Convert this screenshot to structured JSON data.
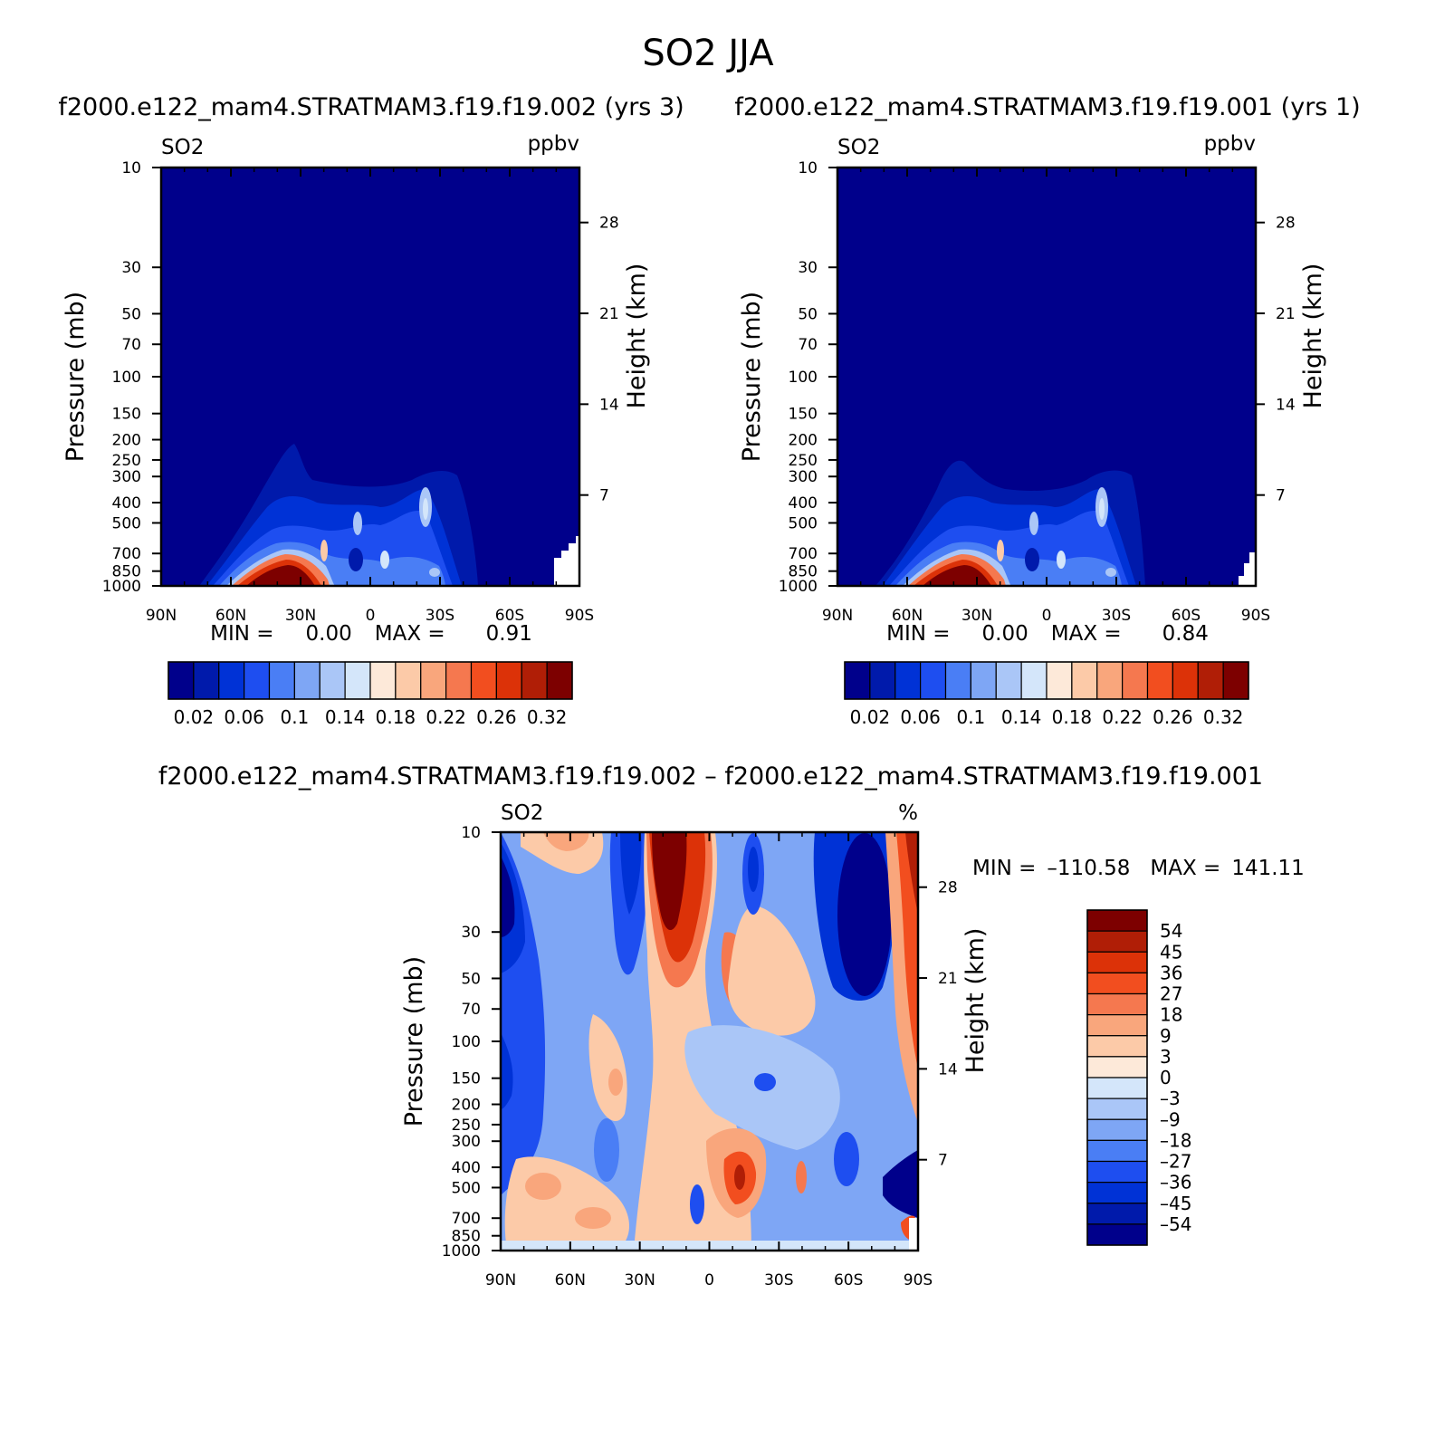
{
  "figure": {
    "title": "SO2 JJA"
  },
  "panels": [
    {
      "id": "case",
      "subtitle": "f2000.e122_mam4.STRATMAM3.f19.f19.002 (yrs 3)",
      "left_label": "SO2",
      "right_label": "ppbv",
      "stats": {
        "min_label": "MIN =",
        "min_value": "0.00",
        "max_label": "MAX =",
        "max_value": "0.91"
      }
    },
    {
      "id": "control",
      "subtitle": "f2000.e122_mam4.STRATMAM3.f19.f19.001 (yrs 1)",
      "left_label": "SO2",
      "right_label": "ppbv",
      "stats": {
        "min_label": "MIN =",
        "min_value": "0.00",
        "max_label": "MAX =",
        "max_value": "0.84"
      }
    },
    {
      "id": "difference",
      "subtitle": "f2000.e122_mam4.STRATMAM3.f19.f19.002 – f2000.e122_mam4.STRATMAM3.f19.f19.001",
      "left_label": "SO2",
      "right_label": "%",
      "stats": {
        "min_label": "MIN =",
        "min_value": "–110.58",
        "max_label": "MAX =",
        "max_value": "141.11"
      }
    }
  ],
  "chart_data": [
    {
      "type": "heatmap",
      "title": "f2000.e122_mam4.STRATMAM3.f19.f19.002 (yrs 3)",
      "variable": "SO2",
      "units": "ppbv",
      "xlabel": "",
      "ylabel": "Pressure (mb)",
      "y2label": "Height (km)",
      "x_ticks": [
        "90N",
        "60N",
        "30N",
        "0",
        "30S",
        "60S",
        "90S"
      ],
      "x_values": [
        90,
        60,
        30,
        0,
        -30,
        -60,
        -90
      ],
      "y_ticks": [
        10,
        30,
        50,
        70,
        100,
        150,
        200,
        250,
        300,
        400,
        500,
        700,
        850,
        1000
      ],
      "y2_ticks": [
        28,
        21,
        14,
        7
      ],
      "ylim": [
        1000,
        10
      ],
      "colorbar_levels": [
        0.02,
        0.04,
        0.06,
        0.08,
        0.1,
        0.12,
        0.14,
        0.16,
        0.18,
        0.2,
        0.22,
        0.24,
        0.26,
        0.28,
        0.32
      ],
      "colorbar_labels": [
        "0.02",
        "0.06",
        "0.1",
        "0.14",
        "0.18",
        "0.22",
        "0.26",
        "0.32"
      ],
      "min": 0.0,
      "max": 0.91
    },
    {
      "type": "heatmap",
      "title": "f2000.e122_mam4.STRATMAM3.f19.f19.001 (yrs 1)",
      "variable": "SO2",
      "units": "ppbv",
      "xlabel": "",
      "ylabel": "Pressure (mb)",
      "y2label": "Height (km)",
      "x_ticks": [
        "90N",
        "60N",
        "30N",
        "0",
        "30S",
        "60S",
        "90S"
      ],
      "x_values": [
        90,
        60,
        30,
        0,
        -30,
        -60,
        -90
      ],
      "y_ticks": [
        10,
        30,
        50,
        70,
        100,
        150,
        200,
        250,
        300,
        400,
        500,
        700,
        850,
        1000
      ],
      "y2_ticks": [
        28,
        21,
        14,
        7
      ],
      "ylim": [
        1000,
        10
      ],
      "colorbar_levels": [
        0.02,
        0.04,
        0.06,
        0.08,
        0.1,
        0.12,
        0.14,
        0.16,
        0.18,
        0.2,
        0.22,
        0.24,
        0.26,
        0.28,
        0.32
      ],
      "colorbar_labels": [
        "0.02",
        "0.06",
        "0.1",
        "0.14",
        "0.18",
        "0.22",
        "0.26",
        "0.32"
      ],
      "min": 0.0,
      "max": 0.84
    },
    {
      "type": "heatmap",
      "title": "f2000.e122_mam4.STRATMAM3.f19.f19.002 – f2000.e122_mam4.STRATMAM3.f19.f19.001",
      "variable": "SO2",
      "units": "%",
      "xlabel": "",
      "ylabel": "Pressure (mb)",
      "y2label": "Height (km)",
      "x_ticks": [
        "90N",
        "60N",
        "30N",
        "0",
        "30S",
        "60S",
        "90S"
      ],
      "x_values": [
        90,
        60,
        30,
        0,
        -30,
        -60,
        -90
      ],
      "y_ticks": [
        10,
        30,
        50,
        70,
        100,
        150,
        200,
        250,
        300,
        400,
        500,
        700,
        850,
        1000
      ],
      "y2_ticks": [
        28,
        21,
        14,
        7
      ],
      "ylim": [
        1000,
        10
      ],
      "colorbar_levels": [
        54,
        45,
        36,
        27,
        18,
        9,
        3,
        0,
        -3,
        -9,
        -18,
        -27,
        -36,
        -45,
        -54
      ],
      "colorbar_labels": [
        "54",
        "45",
        "36",
        "27",
        "18",
        "9",
        "3",
        "0",
        "–3",
        "–9",
        "–18",
        "–27",
        "–36",
        "–45",
        "–54"
      ],
      "min": -110.58,
      "max": 141.11
    }
  ],
  "palettes": {
    "seq": [
      "#00008b",
      "#001aab",
      "#0032d6",
      "#1e4ef0",
      "#4a7ef5",
      "#7ea6f5",
      "#aac6f7",
      "#d4e6fa",
      "#fde9d9",
      "#fccaa8",
      "#f9a67c",
      "#f5784f",
      "#f24e1f",
      "#dc3208",
      "#b01e06",
      "#7d0000"
    ],
    "div_top_to_bottom": [
      "#7d0000",
      "#b01e06",
      "#dc3208",
      "#f24e1f",
      "#f5784f",
      "#f9a67c",
      "#fccaa8",
      "#fde9d9",
      "#d4e6fa",
      "#aac6f7",
      "#7ea6f5",
      "#4a7ef5",
      "#1e4ef0",
      "#0032d6",
      "#001aab",
      "#00008b"
    ]
  }
}
